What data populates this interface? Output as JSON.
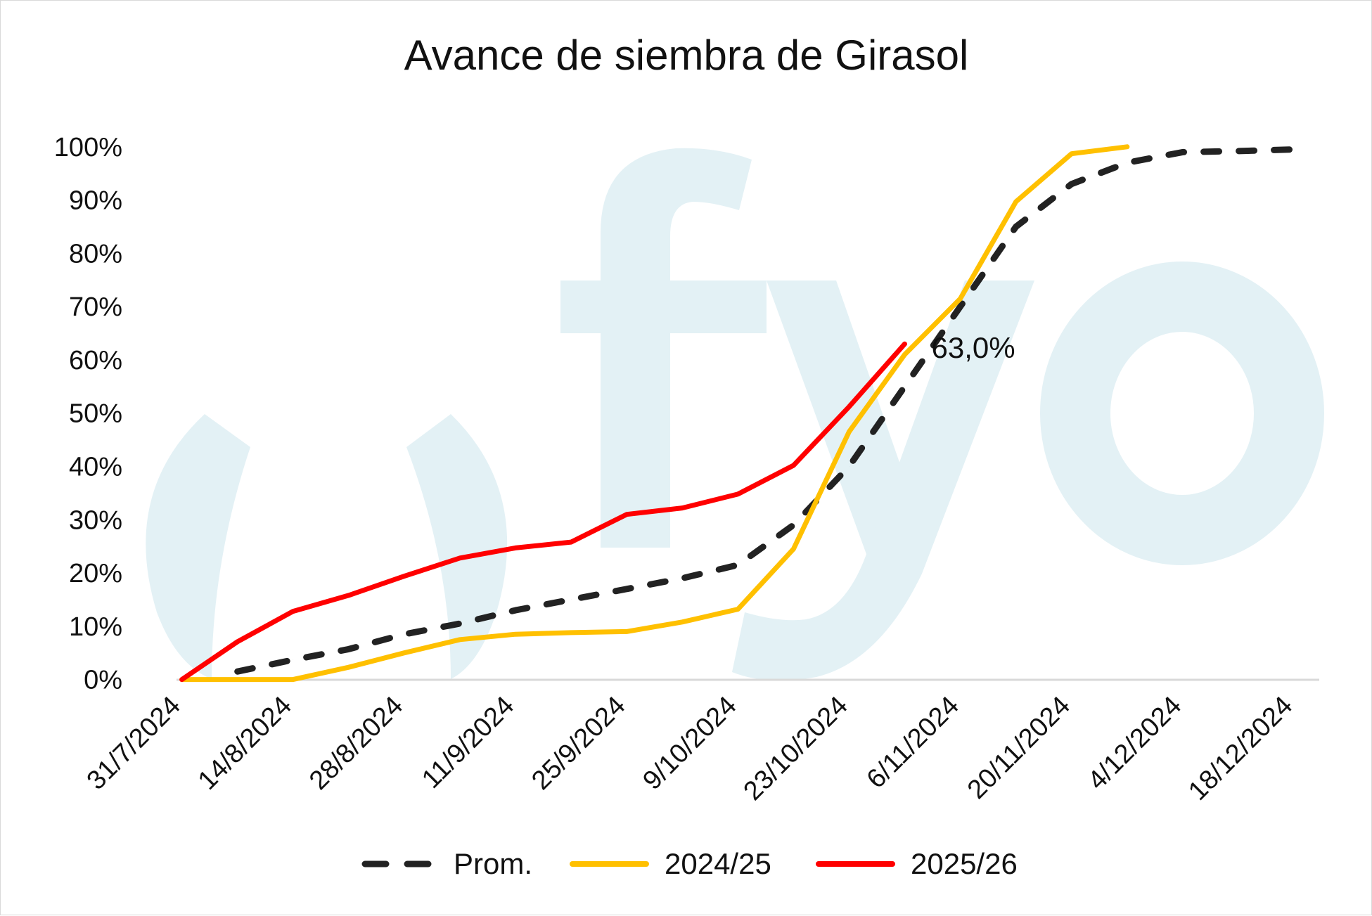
{
  "watermark": {
    "text": "fyo",
    "color": "#e3f1f5"
  },
  "chart_data": {
    "type": "line",
    "title": "Avance de siembra de Girasol",
    "xlabel": "",
    "ylabel": "",
    "ylim": [
      0,
      100
    ],
    "y_ticks": [
      "0%",
      "10%",
      "20%",
      "30%",
      "40%",
      "50%",
      "60%",
      "70%",
      "80%",
      "90%",
      "100%"
    ],
    "x_ticks": [
      "31/7/2024",
      "14/8/2024",
      "28/8/2024",
      "11/9/2024",
      "25/9/2024",
      "9/10/2024",
      "23/10/2024",
      "6/11/2024",
      "20/11/2024",
      "4/12/2024",
      "18/12/2024"
    ],
    "x": [
      "31/7/2024",
      "7/8/2024",
      "14/8/2024",
      "21/8/2024",
      "28/8/2024",
      "4/9/2024",
      "11/9/2024",
      "18/9/2024",
      "25/9/2024",
      "2/10/2024",
      "9/10/2024",
      "16/10/2024",
      "23/10/2024",
      "30/10/2024",
      "6/11/2024",
      "13/11/2024",
      "20/11/2024",
      "27/11/2024",
      "4/12/2024",
      "11/12/2024",
      "18/12/2024"
    ],
    "grid": false,
    "legend_position": "bottom",
    "series": [
      {
        "name": "Prom.",
        "color": "#222222",
        "dashed": true,
        "values": [
          null,
          1.5,
          3.7,
          5.7,
          8.5,
          10.5,
          13.0,
          15.0,
          17.0,
          19.0,
          21.5,
          29.0,
          40.0,
          55.0,
          70.0,
          85.0,
          93.0,
          97.0,
          99.0,
          99.2,
          99.5
        ]
      },
      {
        "name": "2024/25",
        "color": "#ffc000",
        "dashed": false,
        "values": [
          0,
          0,
          0,
          2.3,
          5.0,
          7.5,
          8.5,
          8.8,
          9.0,
          10.8,
          13.2,
          24.5,
          46.5,
          61.0,
          71.5,
          89.7,
          98.7,
          100,
          null,
          null,
          null
        ]
      },
      {
        "name": "2025/26",
        "color": "#ff0000",
        "dashed": false,
        "values": [
          0,
          7.1,
          12.8,
          15.8,
          19.4,
          22.8,
          24.7,
          25.8,
          31.0,
          32.2,
          34.8,
          40.2,
          51.2,
          63.0,
          null,
          null,
          null,
          null,
          null,
          null,
          null
        ]
      }
    ],
    "annotations": [
      {
        "text": "63,0%",
        "series": "2025/26",
        "x": "30/10/2024",
        "y": 63.0
      }
    ]
  }
}
